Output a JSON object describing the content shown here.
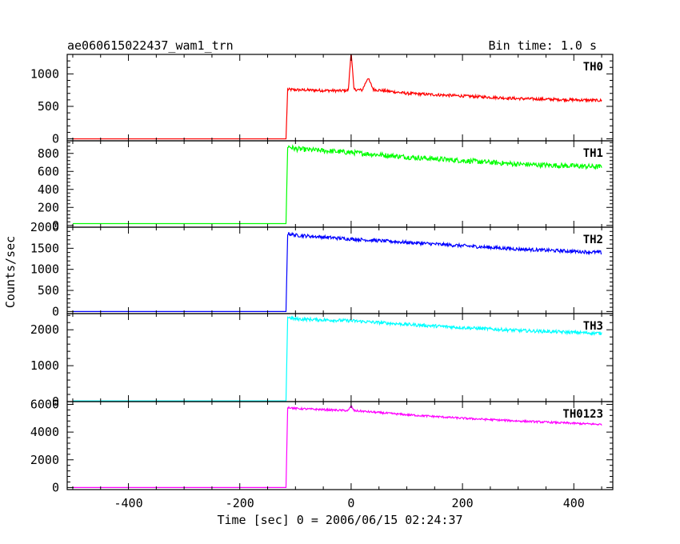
{
  "chart_data": {
    "type": "line",
    "title": "ae060615022437_wam1_trn",
    "bin_time_label": "Bin time: 1.0 s",
    "xlabel": "Time [sec] 0 = 2006/06/15 02:24:37",
    "ylabel": "Counts/sec",
    "xlim": [
      -510,
      470
    ],
    "xticks": [
      -400,
      -200,
      0,
      200,
      400
    ],
    "panels": [
      {
        "name": "TH0",
        "color": "#ff0000",
        "ylim": [
          -30,
          1300
        ],
        "yticks": [
          0,
          500,
          1000
        ],
        "points": [
          [
            -500,
            0
          ],
          [
            -117,
            0
          ],
          [
            -114,
            760
          ],
          [
            -100,
            755
          ],
          [
            -50,
            745
          ],
          [
            -20,
            740
          ],
          [
            -5,
            750
          ],
          [
            0,
            1350
          ],
          [
            5,
            760
          ],
          [
            20,
            750
          ],
          [
            30,
            940
          ],
          [
            40,
            760
          ],
          [
            100,
            700
          ],
          [
            200,
            660
          ],
          [
            300,
            620
          ],
          [
            450,
            590
          ]
        ],
        "noise": 22
      },
      {
        "name": "TH1",
        "color": "#00ff00",
        "ylim": [
          -20,
          940
        ],
        "yticks": [
          0,
          200,
          400,
          600,
          800
        ],
        "points": [
          [
            -500,
            20
          ],
          [
            -117,
            20
          ],
          [
            -114,
            880
          ],
          [
            -100,
            850
          ],
          [
            0,
            810
          ],
          [
            100,
            760
          ],
          [
            200,
            720
          ],
          [
            300,
            680
          ],
          [
            450,
            650
          ]
        ],
        "noise": 28
      },
      {
        "name": "TH2",
        "color": "#0000ff",
        "ylim": [
          -50,
          2000
        ],
        "yticks": [
          0,
          500,
          1000,
          1500,
          2000
        ],
        "points": [
          [
            -500,
            0
          ],
          [
            -117,
            0
          ],
          [
            -114,
            1850
          ],
          [
            -100,
            1810
          ],
          [
            0,
            1720
          ],
          [
            100,
            1640
          ],
          [
            200,
            1560
          ],
          [
            300,
            1480
          ],
          [
            450,
            1400
          ]
        ],
        "noise": 40
      },
      {
        "name": "TH3",
        "color": "#00ffff",
        "ylim": [
          0,
          2450
        ],
        "yticks": [
          0,
          1000,
          2000
        ],
        "points": [
          [
            -500,
            20
          ],
          [
            -117,
            20
          ],
          [
            -114,
            2350
          ],
          [
            -100,
            2300
          ],
          [
            0,
            2250
          ],
          [
            100,
            2150
          ],
          [
            200,
            2060
          ],
          [
            300,
            1980
          ],
          [
            450,
            1900
          ]
        ],
        "noise": 45
      },
      {
        "name": "TH0123",
        "color": "#ff00ff",
        "ylim": [
          -150,
          6200
        ],
        "yticks": [
          0,
          2000,
          4000,
          6000
        ],
        "points": [
          [
            -500,
            0
          ],
          [
            -117,
            0
          ],
          [
            -114,
            5800
          ],
          [
            -100,
            5700
          ],
          [
            -5,
            5550
          ],
          [
            0,
            5900
          ],
          [
            5,
            5550
          ],
          [
            100,
            5250
          ],
          [
            200,
            5000
          ],
          [
            300,
            4800
          ],
          [
            450,
            4550
          ]
        ],
        "noise": 70
      }
    ]
  }
}
